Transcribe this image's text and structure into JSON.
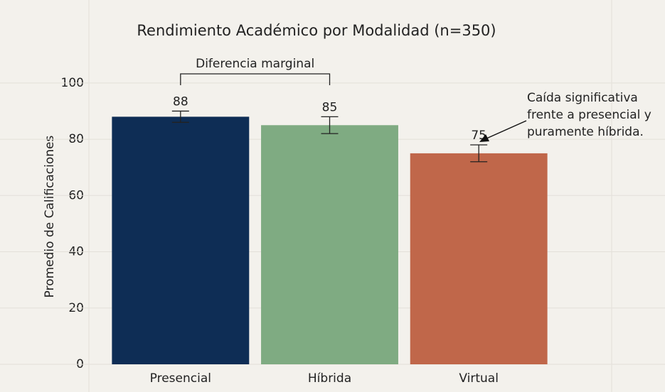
{
  "chart_data": {
    "type": "bar",
    "title": "Rendimiento Académico por Modalidad (n=350)",
    "ylabel": "Promedio de Calificaciones",
    "categories": [
      "Presencial",
      "Híbrida",
      "Virtual"
    ],
    "values": [
      88,
      85,
      75
    ],
    "errors": [
      2,
      3,
      3
    ],
    "colors": [
      "#0e2d55",
      "#7fab82",
      "#c0674a"
    ],
    "ylim": [
      0,
      104
    ],
    "yticks": [
      0,
      20,
      40,
      60,
      80,
      100
    ],
    "grid": true,
    "annotations": [
      {
        "text": "Diferencia marginal"
      },
      {
        "text": [
          "Caída significativa",
          "frente a presencial y",
          "puramente híbrida."
        ]
      }
    ]
  }
}
